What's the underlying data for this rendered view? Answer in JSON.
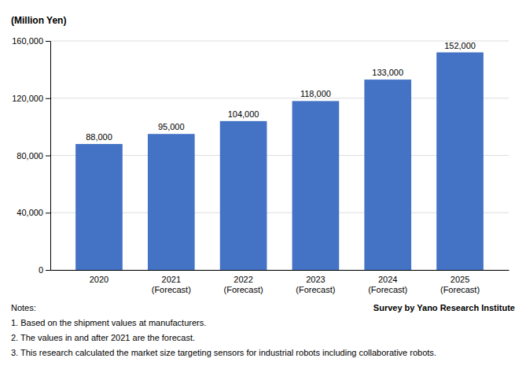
{
  "chart_data": {
    "type": "bar",
    "ylabel": "(Million Yen)",
    "categories": [
      "2020",
      "2021\n(Forecast)",
      "2022\n(Forecast)",
      "2023\n(Forecast)",
      "2024\n(Forecast)",
      "2025\n(Forecast)"
    ],
    "values": [
      88000,
      95000,
      104000,
      118000,
      133000,
      152000
    ],
    "value_labels": [
      "88,000",
      "95,000",
      "104,000",
      "118,000",
      "133,000",
      "152,000"
    ],
    "data_labels": true,
    "color": "#4472C4",
    "ylim": [
      0,
      160000
    ],
    "yticks": [
      0,
      {
        "value": 40000,
        "label": "40,000"
      },
      {
        "value": 80000,
        "label": "80,000"
      },
      {
        "value": 120000,
        "label": "120,000"
      },
      {
        "value": 160000,
        "label": "160,000"
      }
    ],
    "grid": true,
    "annotations": [
      "Notes:",
      "1. Based on the shipment values at manufacturers.",
      "2. The values in and after 2021 are the forecast.",
      "3. This research calculated the market size targeting sensors for industrial robots including collaborative robots."
    ],
    "source": "Survey by Yano Research Institute"
  }
}
